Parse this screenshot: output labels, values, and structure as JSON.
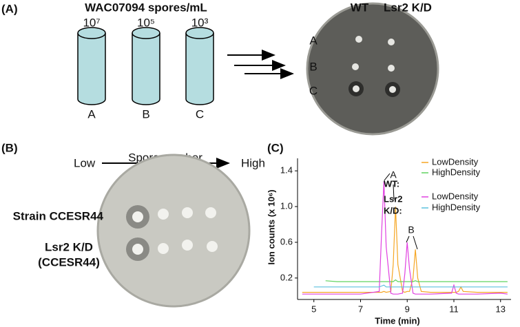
{
  "panel_a": {
    "label": "(A)",
    "title": "WAC07094 spores/mL",
    "tubes": [
      {
        "conc": "10⁷",
        "name": "A"
      },
      {
        "conc": "10⁵",
        "name": "B"
      },
      {
        "conc": "10³",
        "name": "C"
      }
    ],
    "plate_columns": [
      "WT",
      "Lsr2 K/D"
    ],
    "plate_rows": [
      "A",
      "B",
      "C"
    ]
  },
  "panel_b": {
    "label": "(B)",
    "low": "Low",
    "arrow_label": "Spore number",
    "high": "High",
    "rows": [
      [
        "Strain CCESR44"
      ],
      [
        "Lsr2 K/D",
        "(CCESR44)"
      ]
    ]
  },
  "chart_data": {
    "type": "line",
    "label": "(C)",
    "x_label": "Time (min)",
    "y_label": "Ion counts (x 10⁶)",
    "x": [
      4.5,
      5,
      5.5,
      6,
      7,
      7.8,
      7.9,
      8.0,
      8.1,
      8.3,
      8.4,
      8.5,
      8.6,
      8.8,
      8.9,
      9.0,
      9.1,
      9.25,
      9.35,
      9.45,
      9.6,
      10,
      10.9,
      11.0,
      11.1,
      11.2,
      11.3,
      11.4,
      12,
      13,
      13.3
    ],
    "legend_groups": [
      [
        "WT:"
      ],
      [
        "Lsr2",
        "K/D:"
      ]
    ],
    "series": [
      {
        "name": "LowDensity",
        "group": 0,
        "color": "#f5a623",
        "values": [
          0.04,
          0.04,
          0.04,
          0.04,
          0.04,
          0.04,
          0.04,
          0.05,
          0.04,
          0.05,
          0.35,
          1.0,
          0.35,
          0.05,
          0.04,
          0.05,
          0.05,
          0.2,
          0.52,
          0.2,
          0.05,
          0.04,
          0.04,
          0.04,
          0.04,
          0.05,
          0.1,
          0.05,
          0.04,
          0.04,
          0.04
        ]
      },
      {
        "name": "HighDensity",
        "group": 0,
        "color": "#5fd35f",
        "values": [
          null,
          null,
          0.17,
          0.16,
          0.16,
          0.16,
          0.16,
          0.16,
          0.16,
          0.16,
          0.16,
          0.18,
          0.16,
          0.16,
          0.16,
          0.16,
          0.16,
          0.16,
          0.17,
          0.16,
          0.16,
          0.16,
          0.16,
          0.16,
          0.16,
          0.16,
          0.16,
          0.16,
          0.16,
          0.16,
          0.16
        ]
      },
      {
        "name": "LowDensity",
        "group": 1,
        "color": "#e040e0",
        "values": [
          0.02,
          0.02,
          0.02,
          0.02,
          0.02,
          0.05,
          0.7,
          1.28,
          0.55,
          0.03,
          0.02,
          0.02,
          0.02,
          0.03,
          0.25,
          0.6,
          0.3,
          0.03,
          0.02,
          0.02,
          0.02,
          0.02,
          0.03,
          0.12,
          0.03,
          0.02,
          0.02,
          0.02,
          0.02,
          0.03,
          0.02
        ]
      },
      {
        "name": "HighDensity",
        "group": 1,
        "color": "#5bc0de",
        "values": [
          null,
          0.1,
          0.1,
          0.1,
          0.1,
          0.1,
          0.11,
          0.12,
          0.1,
          0.1,
          0.1,
          0.1,
          0.1,
          0.1,
          0.1,
          0.1,
          0.1,
          0.1,
          0.1,
          0.1,
          0.1,
          0.1,
          0.1,
          0.1,
          0.1,
          0.1,
          0.1,
          0.1,
          0.1,
          0.1,
          0.1
        ]
      }
    ],
    "annotations": [
      "A",
      "B"
    ],
    "xlim": [
      4.3,
      13.45
    ],
    "ylim": [
      -0.04,
      1.54
    ],
    "xticks": [
      5,
      7,
      9,
      11,
      13
    ],
    "yticks": [
      0.2,
      0.6,
      {
        "value": 1,
        "label": "1.0"
      },
      1.4
    ]
  }
}
